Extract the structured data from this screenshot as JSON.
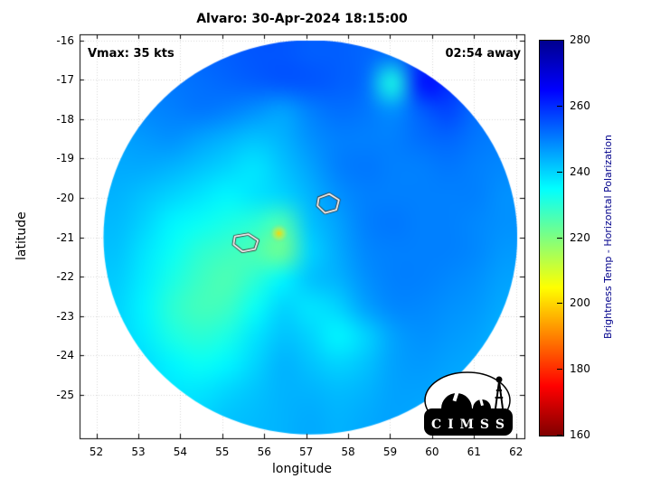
{
  "title": "Alvaro: 30-Apr-2024 18:15:00",
  "annotations": {
    "vmax": "Vmax: 35 kts",
    "eta": "02:54 away"
  },
  "axes": {
    "xlabel": "longitude",
    "ylabel": "latitude"
  },
  "colorbar": {
    "label": "Brightness Temp - Horizontal Polarization"
  },
  "logo": {
    "text": "C I M S S"
  },
  "chart_data": {
    "type": "heatmap",
    "title": "Alvaro: 30-Apr-2024 18:15:00",
    "xlabel": "longitude",
    "ylabel": "latitude",
    "x_range": [
      51.6,
      62.2
    ],
    "y_range": [
      -26.1,
      -15.85
    ],
    "x_ticks": [
      52,
      53,
      54,
      55,
      56,
      57,
      58,
      59,
      60,
      61,
      62
    ],
    "y_ticks": [
      -16,
      -17,
      -18,
      -19,
      -20,
      -21,
      -22,
      -23,
      -24,
      -25
    ],
    "grid_on": true,
    "colorbar": {
      "label": "Brightness Temp - Horizontal Polarization",
      "min": 160,
      "max": 280,
      "ticks": [
        160,
        180,
        200,
        220,
        240,
        260,
        280
      ],
      "colormap": "jet_reversed_high_is_blue"
    },
    "value_range": [
      160,
      280
    ],
    "swath": {
      "shape": "ellipse",
      "center": [
        57.1,
        -21.0
      ],
      "rx": 4.93,
      "ry": 5.0
    },
    "grid": {
      "lon_range": [
        52.17,
        62.03
      ],
      "lat_range": [
        -16.0,
        -26.0
      ],
      "row_order": "north-to-south",
      "col_order": "west-to-east",
      "values": [
        [
          252,
          252,
          252,
          253,
          254,
          255,
          255,
          254,
          254,
          253,
          252,
          258,
          255,
          253,
          252
        ],
        [
          250,
          250,
          251,
          252,
          253,
          254,
          255,
          255,
          254,
          252,
          232,
          263,
          260,
          252,
          250
        ],
        [
          248,
          249,
          250,
          251,
          250,
          248,
          246,
          250,
          252,
          251,
          248,
          254,
          257,
          252,
          250
        ],
        [
          246,
          247,
          248,
          246,
          244,
          242,
          244,
          248,
          250,
          250,
          250,
          252,
          253,
          251,
          250
        ],
        [
          245,
          245,
          244,
          242,
          240,
          238,
          242,
          246,
          250,
          251,
          250,
          250,
          251,
          250,
          249
        ],
        [
          244,
          242,
          240,
          238,
          236,
          238,
          240,
          244,
          248,
          250,
          250,
          250,
          250,
          250,
          248
        ],
        [
          243,
          240,
          236,
          234,
          232,
          230,
          226,
          242,
          246,
          250,
          251,
          250,
          250,
          249,
          248
        ],
        [
          242,
          238,
          234,
          230,
          228,
          226,
          222,
          240,
          245,
          249,
          250,
          250,
          250,
          249,
          247
        ],
        [
          241,
          237,
          232,
          228,
          226,
          230,
          236,
          242,
          244,
          248,
          250,
          250,
          249,
          248,
          246
        ],
        [
          240,
          236,
          230,
          227,
          228,
          234,
          240,
          238,
          240,
          246,
          249,
          249,
          248,
          247,
          245
        ],
        [
          240,
          237,
          232,
          230,
          232,
          238,
          242,
          240,
          236,
          240,
          246,
          248,
          247,
          246,
          244
        ],
        [
          241,
          239,
          236,
          234,
          236,
          240,
          244,
          242,
          240,
          242,
          246,
          247,
          246,
          245,
          243
        ],
        [
          242,
          240,
          238,
          238,
          240,
          242,
          244,
          244,
          243,
          244,
          246,
          246,
          245,
          244,
          242
        ],
        [
          243,
          242,
          240,
          240,
          242,
          243,
          244,
          245,
          244,
          245,
          246,
          245,
          244,
          243,
          242
        ]
      ]
    },
    "hotspots": [
      {
        "lon": 56.35,
        "lat": -20.9,
        "value": 200,
        "radius_px": 11
      }
    ],
    "contours": [
      {
        "level": "center-candidate",
        "points": [
          [
            57.3,
            -20.0
          ],
          [
            57.55,
            -19.9
          ],
          [
            57.78,
            -20.05
          ],
          [
            57.72,
            -20.3
          ],
          [
            57.45,
            -20.38
          ],
          [
            57.27,
            -20.2
          ]
        ]
      },
      {
        "level": "center-candidate",
        "points": [
          [
            55.3,
            -20.98
          ],
          [
            55.62,
            -20.92
          ],
          [
            55.85,
            -21.08
          ],
          [
            55.78,
            -21.3
          ],
          [
            55.48,
            -21.36
          ],
          [
            55.27,
            -21.18
          ]
        ]
      }
    ]
  }
}
